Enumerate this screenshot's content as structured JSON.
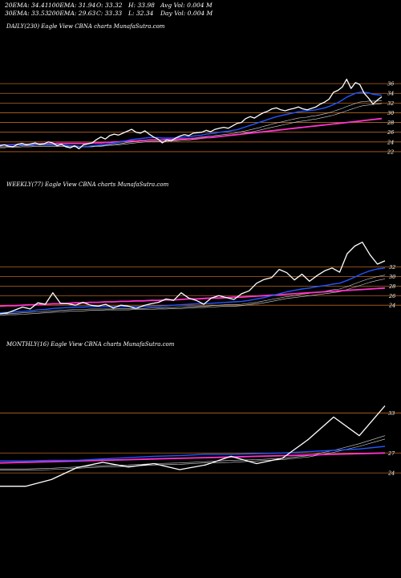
{
  "header": {
    "row1": [
      "20EMA: 34.41",
      "100EMA: 31.94",
      "O: 33.32",
      "H: 33.98",
      "Avg Vol: 0.004  M"
    ],
    "row2": [
      "30EMA: 33.53",
      "200EMA: 29.63",
      "C: 33.33",
      "L: 32.34",
      "Day Vol: 0.004  M"
    ]
  },
  "panels": [
    {
      "title": "DAILY(230) Eagle   View  CBNA charts MunafaSutra.com"
    },
    {
      "title": "WEEKLY(77) Eagle   View  CBNA charts MunafaSutra.com"
    },
    {
      "title": "MONTHLY(16) Eagle   View  CBNA charts MunafaSutra.com"
    }
  ],
  "colors": {
    "background": "#000000",
    "price": "#ffffff",
    "ema_fast": "#2255ff",
    "ema_slow": "#ff33cc",
    "ema_other": "#d8d8d8",
    "gridline": "#b8651e",
    "text": "#ffffff"
  },
  "chart_data": [
    {
      "type": "line",
      "title": "DAILY(230) Eagle   View  CBNA charts MunafaSutra.com",
      "ylim": [
        20.5,
        38
      ],
      "y_ticks": [
        36,
        34,
        32,
        30,
        28,
        26,
        24,
        22
      ],
      "grid": true,
      "series": [
        {
          "role": "price",
          "values": [
            23.2,
            23.4,
            23.1,
            23.0,
            23.5,
            23.7,
            23.4,
            23.6,
            23.8,
            23.5,
            23.6,
            24.0,
            23.8,
            23.2,
            23.5,
            23.0,
            22.8,
            23.2,
            22.6,
            23.4,
            23.6,
            23.8,
            24.5,
            25.0,
            24.6,
            25.3,
            25.6,
            25.4,
            25.8,
            26.2,
            26.6,
            26.0,
            25.8,
            26.3,
            25.6,
            25.0,
            24.6,
            23.8,
            24.4,
            24.2,
            24.8,
            25.2,
            25.5,
            25.3,
            25.8,
            25.9,
            26.0,
            26.4,
            26.1,
            26.6,
            26.8,
            27.0,
            26.8,
            27.3,
            27.8,
            28.0,
            28.8,
            29.2,
            28.9,
            29.5,
            30.0,
            30.3,
            30.8,
            31.0,
            30.6,
            30.4,
            30.7,
            30.9,
            31.2,
            30.8,
            30.6,
            30.9,
            31.2,
            31.8,
            32.2,
            32.8,
            34.2,
            34.6,
            35.3,
            36.9,
            35.0,
            36.2,
            35.8,
            34.0,
            33.0,
            31.8,
            32.6,
            33.3
          ]
        },
        {
          "role": "ema_fast",
          "values": [
            23.4,
            23.4,
            23.4,
            23.4,
            23.4,
            23.4,
            23.4,
            23.4,
            23.5,
            23.5,
            23.5,
            23.5,
            23.5,
            23.4,
            23.4,
            23.3,
            23.2,
            23.2,
            23.1,
            23.1,
            23.1,
            23.2,
            23.3,
            23.4,
            23.5,
            23.6,
            23.8,
            23.9,
            24.1,
            24.3,
            24.5,
            24.6,
            24.7,
            24.8,
            24.9,
            24.9,
            24.9,
            24.8,
            24.8,
            24.8,
            24.8,
            24.9,
            25.0,
            25.1,
            25.2,
            25.3,
            25.4,
            25.6,
            25.7,
            25.8,
            26.0,
            26.1,
            26.2,
            26.4,
            26.5,
            26.8,
            27.1,
            27.4,
            27.7,
            28.0,
            28.3,
            28.6,
            28.9,
            29.2,
            29.4,
            29.6,
            29.8,
            30.0,
            30.2,
            30.3,
            30.4,
            30.5,
            30.6,
            30.8,
            31.0,
            31.3,
            31.7,
            32.1,
            32.6,
            33.2,
            33.6,
            34.0,
            34.2,
            34.2,
            34.1,
            33.8,
            33.7,
            33.6
          ]
        },
        {
          "role": "ema_slow",
          "values": [
            23.4,
            23.4,
            23.4,
            23.4,
            23.5,
            23.5,
            23.5,
            23.5,
            23.5,
            23.6,
            23.6,
            23.6,
            23.6,
            23.7,
            23.7,
            23.7,
            23.7,
            23.7,
            23.7,
            23.7,
            23.7,
            23.8,
            23.8,
            23.8,
            23.9,
            23.9,
            24.0,
            24.0,
            24.1,
            24.1,
            24.2,
            24.2,
            24.3,
            24.3,
            24.4,
            24.4,
            24.4,
            24.4,
            24.5,
            24.5,
            24.5,
            24.6,
            24.6,
            24.7,
            24.7,
            24.8,
            24.8,
            24.9,
            24.9,
            25.0,
            25.1,
            25.2,
            25.3,
            25.4,
            25.5,
            25.6,
            25.7,
            25.8,
            25.9,
            26.0,
            26.1,
            26.2,
            26.3,
            26.4,
            26.5,
            26.6,
            26.7,
            26.8,
            26.9,
            27.0,
            27.1,
            27.2,
            27.3,
            27.4,
            27.5,
            27.6,
            27.7,
            27.8,
            27.9,
            28.0,
            28.1,
            28.2,
            28.3,
            28.4,
            28.5,
            28.6,
            28.7,
            28.8
          ]
        },
        {
          "role": "ema_other",
          "values": [
            23.0,
            23.0,
            23.1,
            23.1,
            23.1,
            23.2,
            23.2,
            23.2,
            23.3,
            23.3,
            23.3,
            23.3,
            23.3,
            23.3,
            23.3,
            23.2,
            23.2,
            23.1,
            23.1,
            23.1,
            23.1,
            23.1,
            23.2,
            23.2,
            23.3,
            23.4,
            23.5,
            23.6,
            23.7,
            23.9,
            24.0,
            24.1,
            24.2,
            24.3,
            24.4,
            24.4,
            24.4,
            24.4,
            24.4,
            24.4,
            24.4,
            24.5,
            24.6,
            24.7,
            24.8,
            24.9,
            25.0,
            25.1,
            25.2,
            25.3,
            25.4,
            25.5,
            25.6,
            25.7,
            25.9,
            26.1,
            26.3,
            26.5,
            26.7,
            26.9,
            27.2,
            27.4,
            27.7,
            27.9,
            28.1,
            28.3,
            28.5,
            28.7,
            28.9,
            29.0,
            29.1,
            29.3,
            29.4,
            29.6,
            29.8,
            30.0,
            30.3,
            30.6,
            30.9,
            31.3,
            31.6,
            31.9,
            32.2,
            32.3,
            32.4,
            32.4,
            32.4,
            32.5
          ]
        },
        {
          "role": "ema_other",
          "values": [
            22.8,
            22.8,
            22.9,
            22.9,
            22.9,
            23.0,
            23.0,
            23.0,
            23.1,
            23.1,
            23.1,
            23.1,
            23.1,
            23.1,
            23.1,
            23.1,
            23.1,
            23.0,
            23.0,
            23.0,
            23.0,
            23.0,
            23.1,
            23.1,
            23.2,
            23.3,
            23.3,
            23.4,
            23.5,
            23.6,
            23.7,
            23.8,
            23.9,
            24.0,
            24.1,
            24.1,
            24.1,
            24.1,
            24.1,
            24.2,
            24.2,
            24.3,
            24.4,
            24.4,
            24.5,
            24.6,
            24.7,
            24.8,
            24.9,
            25.0,
            25.1,
            25.2,
            25.3,
            25.4,
            25.5,
            25.7,
            25.9,
            26.0,
            26.2,
            26.4,
            26.6,
            26.8,
            27.0,
            27.2,
            27.4,
            27.6,
            27.8,
            28.0,
            28.2,
            28.3,
            28.4,
            28.6,
            28.7,
            28.9,
            29.1,
            29.3,
            29.5,
            29.8,
            30.1,
            30.4,
            30.7,
            31.0,
            31.3,
            31.5,
            31.6,
            31.7,
            31.8,
            31.9
          ]
        }
      ]
    },
    {
      "type": "line",
      "title": "WEEKLY(77) Eagle   View  CBNA charts MunafaSutra.com",
      "ylim": [
        21,
        39
      ],
      "y_ticks": [
        32,
        30,
        28,
        26,
        24
      ],
      "grid": true,
      "series": [
        {
          "role": "price",
          "values": [
            22.2,
            22.4,
            23.0,
            23.6,
            23.2,
            24.5,
            24.2,
            26.6,
            24.4,
            24.3,
            24.0,
            24.6,
            24.0,
            23.8,
            24.2,
            23.4,
            24.0,
            23.8,
            23.3,
            23.9,
            24.3,
            24.6,
            25.3,
            25.0,
            26.6,
            25.5,
            25.0,
            24.2,
            25.5,
            26.0,
            25.6,
            25.2,
            26.4,
            27.0,
            28.6,
            29.4,
            29.8,
            31.5,
            30.8,
            29.3,
            30.5,
            29.0,
            30.2,
            31.2,
            31.8,
            30.9,
            34.8,
            36.4,
            37.2,
            34.6,
            32.6,
            33.3
          ]
        },
        {
          "role": "ema_fast",
          "values": [
            22.4,
            22.5,
            22.6,
            22.7,
            22.8,
            23.0,
            23.1,
            23.3,
            23.4,
            23.5,
            23.6,
            23.6,
            23.7,
            23.7,
            23.7,
            23.7,
            23.7,
            23.7,
            23.7,
            23.7,
            23.8,
            23.8,
            23.9,
            24.0,
            24.1,
            24.2,
            24.3,
            24.3,
            24.4,
            24.5,
            24.6,
            24.7,
            24.8,
            25.0,
            25.3,
            25.6,
            26.0,
            26.4,
            26.8,
            27.1,
            27.4,
            27.6,
            27.9,
            28.1,
            28.4,
            28.6,
            29.2,
            29.9,
            30.6,
            31.2,
            31.6,
            31.8
          ]
        },
        {
          "role": "ema_slow",
          "values": [
            23.8,
            23.9,
            23.9,
            24.0,
            24.1,
            24.1,
            24.2,
            24.3,
            24.3,
            24.4,
            24.5,
            24.5,
            24.6,
            24.6,
            24.7,
            24.7,
            24.8,
            24.8,
            24.9,
            24.9,
            25.0,
            25.0,
            25.1,
            25.1,
            25.2,
            25.3,
            25.3,
            25.4,
            25.5,
            25.5,
            25.6,
            25.7,
            25.7,
            25.8,
            25.9,
            26.0,
            26.1,
            26.2,
            26.3,
            26.4,
            26.5,
            26.6,
            26.7,
            26.8,
            26.9,
            27.0,
            27.1,
            27.2,
            27.3,
            27.4,
            27.5,
            27.6
          ]
        },
        {
          "role": "ema_other",
          "values": [
            22.2,
            22.2,
            22.3,
            22.4,
            22.5,
            22.6,
            22.7,
            22.8,
            22.9,
            23.0,
            23.1,
            23.1,
            23.2,
            23.2,
            23.2,
            23.2,
            23.3,
            23.3,
            23.3,
            23.3,
            23.4,
            23.4,
            23.5,
            23.5,
            23.6,
            23.7,
            23.7,
            23.8,
            23.9,
            24.0,
            24.1,
            24.1,
            24.2,
            24.4,
            24.6,
            24.9,
            25.2,
            25.5,
            25.8,
            26.0,
            26.3,
            26.5,
            26.7,
            26.9,
            27.2,
            27.4,
            27.9,
            28.5,
            29.1,
            29.6,
            30.0,
            30.3
          ]
        },
        {
          "role": "ema_other",
          "values": [
            21.9,
            22.0,
            22.0,
            22.1,
            22.2,
            22.3,
            22.4,
            22.5,
            22.6,
            22.7,
            22.8,
            22.8,
            22.9,
            22.9,
            23.0,
            23.0,
            23.0,
            23.0,
            23.1,
            23.1,
            23.1,
            23.2,
            23.2,
            23.3,
            23.3,
            23.4,
            23.5,
            23.5,
            23.6,
            23.7,
            23.8,
            23.8,
            23.9,
            24.1,
            24.3,
            24.5,
            24.8,
            25.1,
            25.4,
            25.6,
            25.8,
            26.0,
            26.2,
            26.4,
            26.6,
            26.8,
            27.3,
            27.8,
            28.3,
            28.8,
            29.2,
            29.5
          ]
        }
      ]
    },
    {
      "type": "line",
      "title": "MONTHLY(16) Eagle   View  CBNA charts MunafaSutra.com",
      "ylim": [
        21,
        35
      ],
      "y_ticks": [
        33,
        27,
        24
      ],
      "grid": true,
      "series": [
        {
          "role": "price",
          "values": [
            22.0,
            22.0,
            23.0,
            24.8,
            25.6,
            24.9,
            25.4,
            24.5,
            25.2,
            26.5,
            25.4,
            26.2,
            29.0,
            32.4,
            29.6,
            34.1
          ]
        },
        {
          "role": "ema_fast",
          "values": [
            25.8,
            25.8,
            25.9,
            25.9,
            26.1,
            26.3,
            26.5,
            26.6,
            26.8,
            26.8,
            26.9,
            27.0,
            27.2,
            27.4,
            27.6,
            28.0
          ]
        },
        {
          "role": "ema_slow",
          "values": [
            25.5,
            25.6,
            25.7,
            25.8,
            25.9,
            26.0,
            26.1,
            26.2,
            26.3,
            26.4,
            26.5,
            26.6,
            26.7,
            26.8,
            26.9,
            27.0
          ]
        },
        {
          "role": "ema_other",
          "values": [
            24.6,
            24.6,
            24.7,
            24.9,
            25.1,
            25.2,
            25.4,
            25.5,
            25.7,
            25.9,
            26.0,
            26.2,
            26.6,
            27.4,
            28.4,
            29.6
          ]
        },
        {
          "role": "ema_other",
          "values": [
            24.4,
            24.4,
            24.5,
            24.7,
            24.9,
            25.0,
            25.2,
            25.3,
            25.5,
            25.6,
            25.8,
            26.0,
            26.4,
            27.1,
            28.0,
            29.1
          ]
        }
      ]
    }
  ]
}
